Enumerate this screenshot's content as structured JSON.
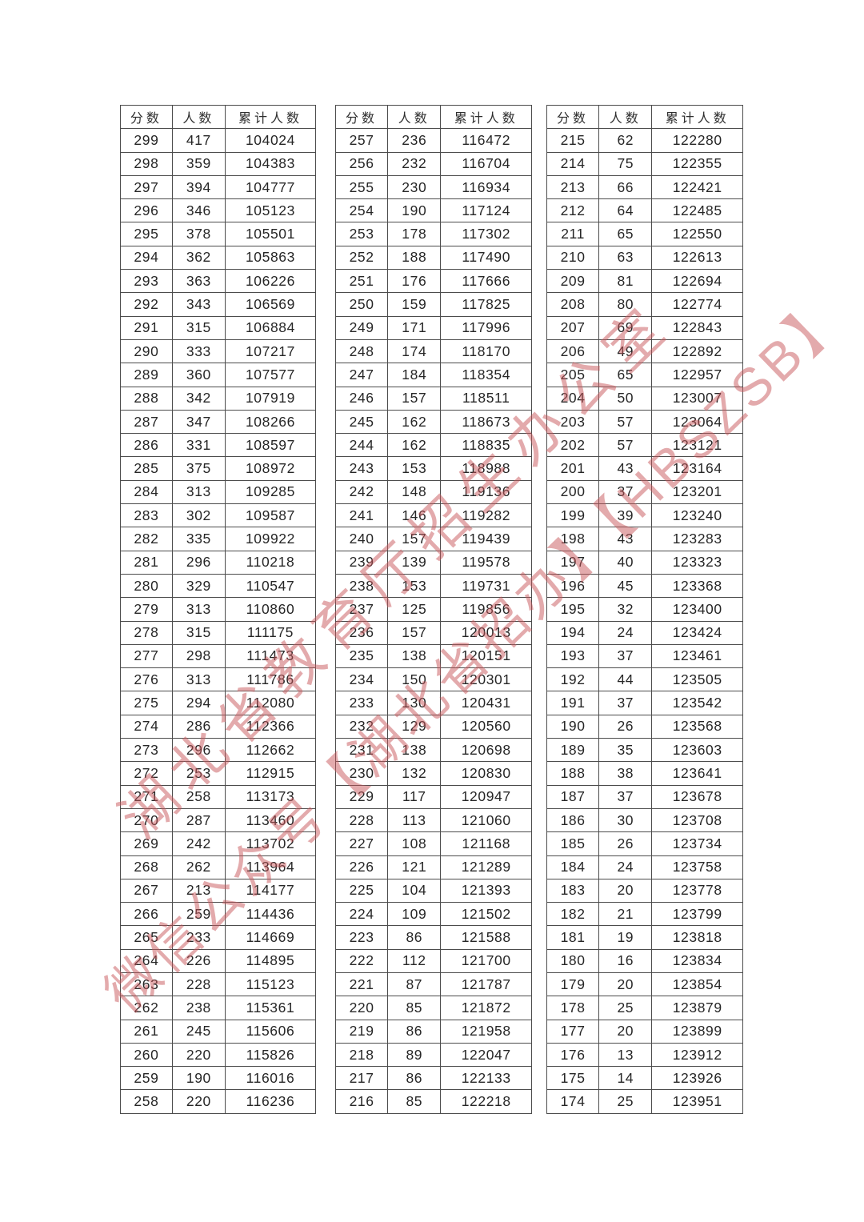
{
  "columns": [
    "分数",
    "人数",
    "累计人数"
  ],
  "tables": [
    {
      "rows": [
        [
          299,
          417,
          104024
        ],
        [
          298,
          359,
          104383
        ],
        [
          297,
          394,
          104777
        ],
        [
          296,
          346,
          105123
        ],
        [
          295,
          378,
          105501
        ],
        [
          294,
          362,
          105863
        ],
        [
          293,
          363,
          106226
        ],
        [
          292,
          343,
          106569
        ],
        [
          291,
          315,
          106884
        ],
        [
          290,
          333,
          107217
        ],
        [
          289,
          360,
          107577
        ],
        [
          288,
          342,
          107919
        ],
        [
          287,
          347,
          108266
        ],
        [
          286,
          331,
          108597
        ],
        [
          285,
          375,
          108972
        ],
        [
          284,
          313,
          109285
        ],
        [
          283,
          302,
          109587
        ],
        [
          282,
          335,
          109922
        ],
        [
          281,
          296,
          110218
        ],
        [
          280,
          329,
          110547
        ],
        [
          279,
          313,
          110860
        ],
        [
          278,
          315,
          111175
        ],
        [
          277,
          298,
          111473
        ],
        [
          276,
          313,
          111786
        ],
        [
          275,
          294,
          112080
        ],
        [
          274,
          286,
          112366
        ],
        [
          273,
          296,
          112662
        ],
        [
          272,
          253,
          112915
        ],
        [
          271,
          258,
          113173
        ],
        [
          270,
          287,
          113460
        ],
        [
          269,
          242,
          113702
        ],
        [
          268,
          262,
          113964
        ],
        [
          267,
          213,
          114177
        ],
        [
          266,
          259,
          114436
        ],
        [
          265,
          233,
          114669
        ],
        [
          264,
          226,
          114895
        ],
        [
          263,
          228,
          115123
        ],
        [
          262,
          238,
          115361
        ],
        [
          261,
          245,
          115606
        ],
        [
          260,
          220,
          115826
        ],
        [
          259,
          190,
          116016
        ],
        [
          258,
          220,
          116236
        ]
      ]
    },
    {
      "rows": [
        [
          257,
          236,
          116472
        ],
        [
          256,
          232,
          116704
        ],
        [
          255,
          230,
          116934
        ],
        [
          254,
          190,
          117124
        ],
        [
          253,
          178,
          117302
        ],
        [
          252,
          188,
          117490
        ],
        [
          251,
          176,
          117666
        ],
        [
          250,
          159,
          117825
        ],
        [
          249,
          171,
          117996
        ],
        [
          248,
          174,
          118170
        ],
        [
          247,
          184,
          118354
        ],
        [
          246,
          157,
          118511
        ],
        [
          245,
          162,
          118673
        ],
        [
          244,
          162,
          118835
        ],
        [
          243,
          153,
          118988
        ],
        [
          242,
          148,
          119136
        ],
        [
          241,
          146,
          119282
        ],
        [
          240,
          157,
          119439
        ],
        [
          239,
          139,
          119578
        ],
        [
          238,
          153,
          119731
        ],
        [
          237,
          125,
          119856
        ],
        [
          236,
          157,
          120013
        ],
        [
          235,
          138,
          120151
        ],
        [
          234,
          150,
          120301
        ],
        [
          233,
          130,
          120431
        ],
        [
          232,
          129,
          120560
        ],
        [
          231,
          138,
          120698
        ],
        [
          230,
          132,
          120830
        ],
        [
          229,
          117,
          120947
        ],
        [
          228,
          113,
          121060
        ],
        [
          227,
          108,
          121168
        ],
        [
          226,
          121,
          121289
        ],
        [
          225,
          104,
          121393
        ],
        [
          224,
          109,
          121502
        ],
        [
          223,
          86,
          121588
        ],
        [
          222,
          112,
          121700
        ],
        [
          221,
          87,
          121787
        ],
        [
          220,
          85,
          121872
        ],
        [
          219,
          86,
          121958
        ],
        [
          218,
          89,
          122047
        ],
        [
          217,
          86,
          122133
        ],
        [
          216,
          85,
          122218
        ]
      ]
    },
    {
      "rows": [
        [
          215,
          62,
          122280
        ],
        [
          214,
          75,
          122355
        ],
        [
          213,
          66,
          122421
        ],
        [
          212,
          64,
          122485
        ],
        [
          211,
          65,
          122550
        ],
        [
          210,
          63,
          122613
        ],
        [
          209,
          81,
          122694
        ],
        [
          208,
          80,
          122774
        ],
        [
          207,
          69,
          122843
        ],
        [
          206,
          49,
          122892
        ],
        [
          205,
          65,
          122957
        ],
        [
          204,
          50,
          123007
        ],
        [
          203,
          57,
          123064
        ],
        [
          202,
          57,
          123121
        ],
        [
          201,
          43,
          123164
        ],
        [
          200,
          37,
          123201
        ],
        [
          199,
          39,
          123240
        ],
        [
          198,
          43,
          123283
        ],
        [
          197,
          40,
          123323
        ],
        [
          196,
          45,
          123368
        ],
        [
          195,
          32,
          123400
        ],
        [
          194,
          24,
          123424
        ],
        [
          193,
          37,
          123461
        ],
        [
          192,
          44,
          123505
        ],
        [
          191,
          37,
          123542
        ],
        [
          190,
          26,
          123568
        ],
        [
          189,
          35,
          123603
        ],
        [
          188,
          38,
          123641
        ],
        [
          187,
          37,
          123678
        ],
        [
          186,
          30,
          123708
        ],
        [
          185,
          26,
          123734
        ],
        [
          184,
          24,
          123758
        ],
        [
          183,
          20,
          123778
        ],
        [
          182,
          21,
          123799
        ],
        [
          181,
          19,
          123818
        ],
        [
          180,
          16,
          123834
        ],
        [
          179,
          20,
          123854
        ],
        [
          178,
          25,
          123879
        ],
        [
          177,
          20,
          123899
        ],
        [
          176,
          13,
          123912
        ],
        [
          175,
          14,
          123926
        ],
        [
          174,
          25,
          123951
        ]
      ]
    }
  ],
  "watermark": {
    "color": "#c9575b",
    "lines": [
      "湖北省教育厅招生办公室",
      "微信公众号【湖北省招办】【HBSZSB】"
    ]
  }
}
